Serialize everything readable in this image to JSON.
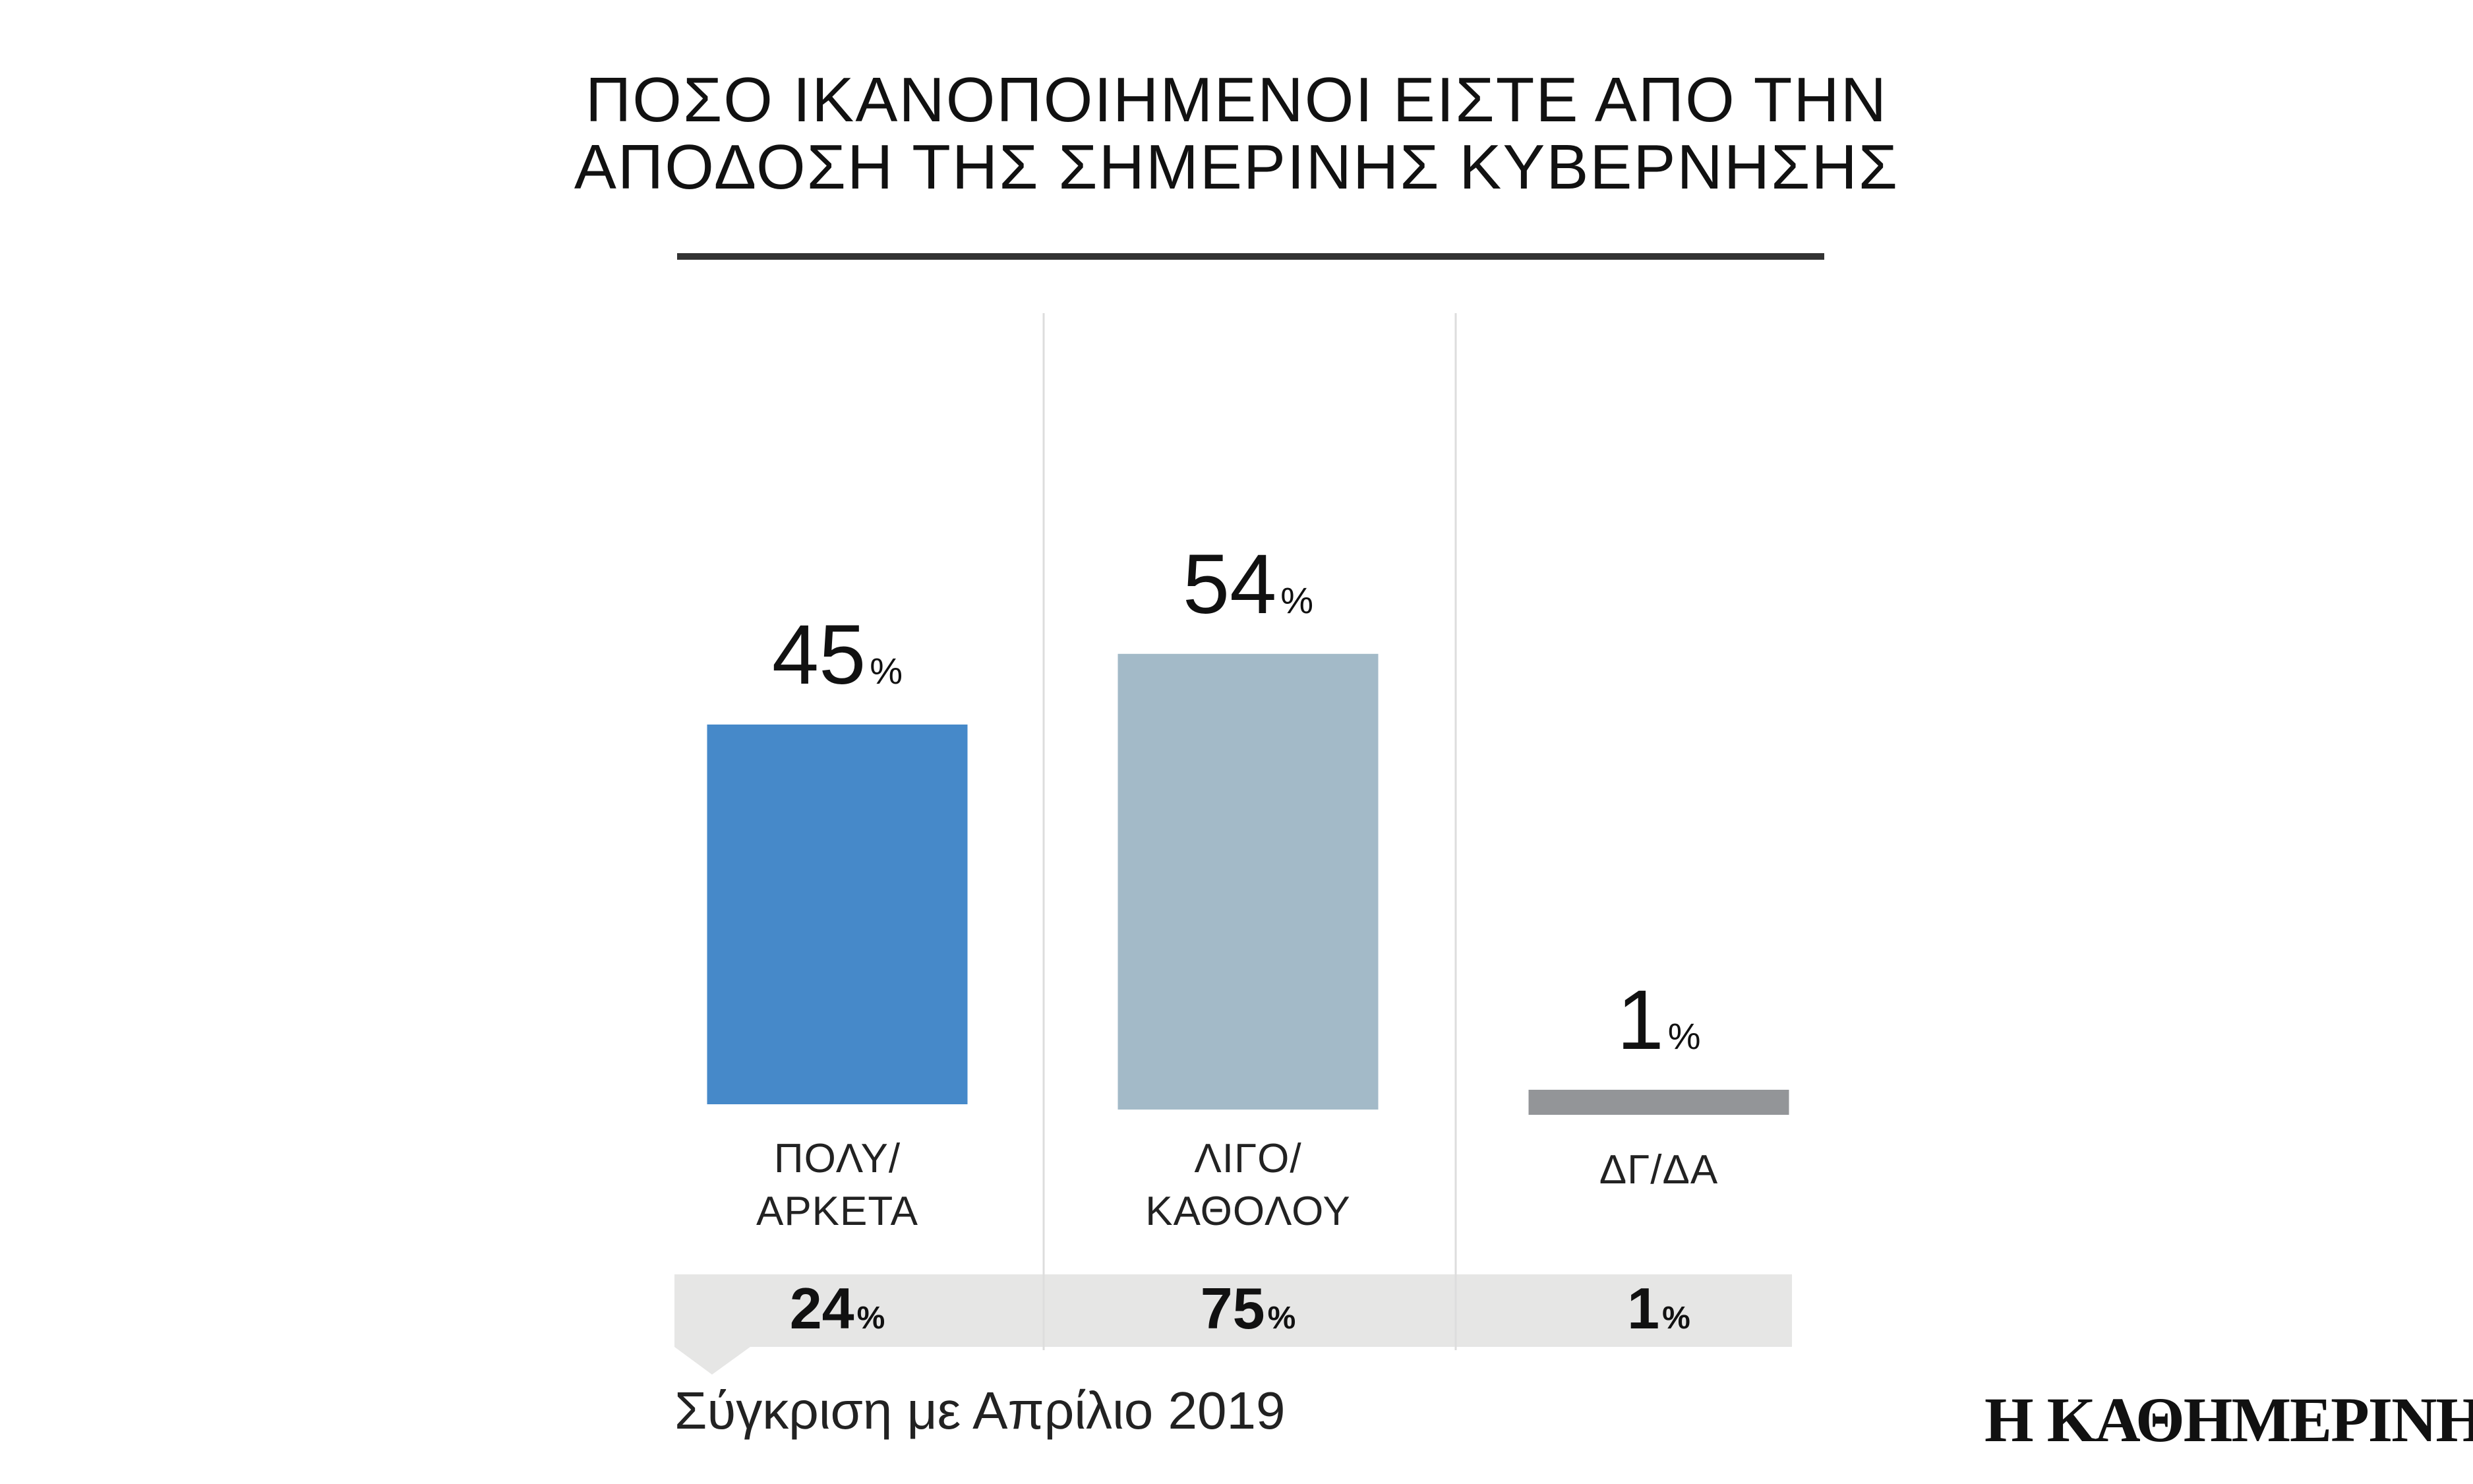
{
  "title": {
    "line1": "ΠΟΣΟ ΙΚΑΝΟΠΟΙΗΜΕΝΟΙ ΕΙΣΤΕ ΑΠΟ ΤΗΝ",
    "line2": "ΑΠΟΔΟΣΗ ΤΗΣ ΣΗΜΕΡΙΝΗΣ ΚΥΒΕΡΝΗΣΗΣ"
  },
  "chart_data": {
    "type": "bar",
    "title": "ΠΟΣΟ ΙΚΑΝΟΠΟΙΗΜΕΝΟΙ ΕΙΣΤΕ ΑΠΟ ΤΗΝ ΑΠΟΔΟΣΗ ΤΗΣ ΣΗΜΕΡΙΝΗΣ ΚΥΒΕΡΝΗΣΗΣ",
    "categories": [
      {
        "line1": "ΠΟΛΥ/",
        "line2": "ΑΡΚΕΤΑ"
      },
      {
        "line1": "ΛΙΓΟ/",
        "line2": "ΚΑΘΟΛΟΥ"
      },
      {
        "line1": "ΔΓ/ΔΑ",
        "line2": ""
      }
    ],
    "values": [
      45,
      54,
      1
    ],
    "unit": "%",
    "colors": [
      "#4689c9",
      "#a3bac8",
      "#939598"
    ],
    "comparison": {
      "label": "Σύγκριση με Απρίλιο 2019",
      "values": [
        24,
        75,
        1
      ]
    },
    "xlabel": "",
    "ylabel": "",
    "grid": false,
    "legend": "none"
  },
  "brand": "Η ΚΑΘΗΜΕΡΙΝΗ",
  "colors": {
    "comparison_band": "#e6e6e5",
    "divider": "#dddddd",
    "title_rule": "#333333"
  }
}
